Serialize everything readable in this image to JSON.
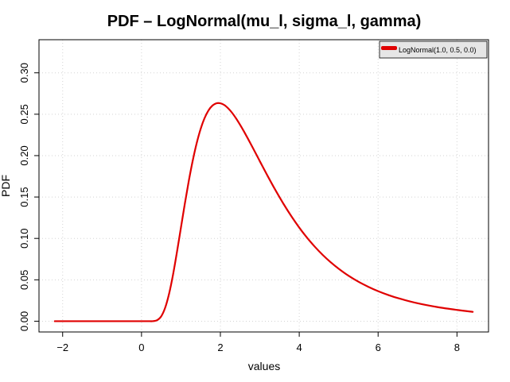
{
  "chart_data": {
    "type": "line",
    "title": "PDF – LogNormal(mu_l, sigma_l, gamma)",
    "xlabel": "values",
    "ylabel": "PDF",
    "xlim": [
      -2.6,
      8.8
    ],
    "ylim": [
      -0.013,
      0.34
    ],
    "xticks": [
      -2,
      0,
      2,
      4,
      6,
      8
    ],
    "xtick_labels": [
      "−2",
      "0",
      "2",
      "4",
      "6",
      "8"
    ],
    "yticks": [
      0.0,
      0.05,
      0.1,
      0.15,
      0.2,
      0.25,
      0.3
    ],
    "ytick_labels": [
      "0.00",
      "0.05",
      "0.10",
      "0.15",
      "0.20",
      "0.25",
      "0.30"
    ],
    "grid": true,
    "legend_position": "top-right",
    "colors": {
      "series": "#e00000",
      "grid": "#d3d3d3",
      "legend_bg": "#e6e6e6"
    },
    "series": [
      {
        "name": "LogNormal(1.0, 0.5, 0.0)",
        "x": [
          -2.2,
          -1.5,
          -1.0,
          -0.5,
          0.0,
          0.2,
          0.3,
          0.4,
          0.5,
          0.6,
          0.7,
          0.8,
          0.9,
          1.0,
          1.1,
          1.2,
          1.3,
          1.4,
          1.5,
          1.6,
          1.7,
          1.8,
          1.9,
          2.0,
          2.1,
          2.2,
          2.3,
          2.4,
          2.5,
          2.6,
          2.8,
          3.0,
          3.2,
          3.4,
          3.6,
          3.8,
          4.0,
          4.2,
          4.4,
          4.6,
          4.8,
          5.0,
          5.25,
          5.5,
          5.75,
          6.0,
          6.25,
          6.5,
          7.0,
          7.5,
          8.0,
          8.4
        ],
        "y": [
          0.0,
          0.0,
          0.0,
          0.0,
          0.0,
          0.0,
          0.0001,
          0.0013,
          0.0059,
          0.0163,
          0.0333,
          0.0564,
          0.0838,
          0.1131,
          0.1423,
          0.1697,
          0.1942,
          0.2152,
          0.2323,
          0.2454,
          0.2547,
          0.2605,
          0.2632,
          0.2632,
          0.2611,
          0.257,
          0.2515,
          0.2448,
          0.2372,
          0.229,
          0.2115,
          0.1933,
          0.1753,
          0.158,
          0.1418,
          0.1268,
          0.1131,
          0.1007,
          0.0897,
          0.0798,
          0.0711,
          0.0634,
          0.0549,
          0.0477,
          0.0416,
          0.0363,
          0.0318,
          0.0279,
          0.0217,
          0.0171,
          0.0136,
          0.0113
        ]
      }
    ]
  }
}
